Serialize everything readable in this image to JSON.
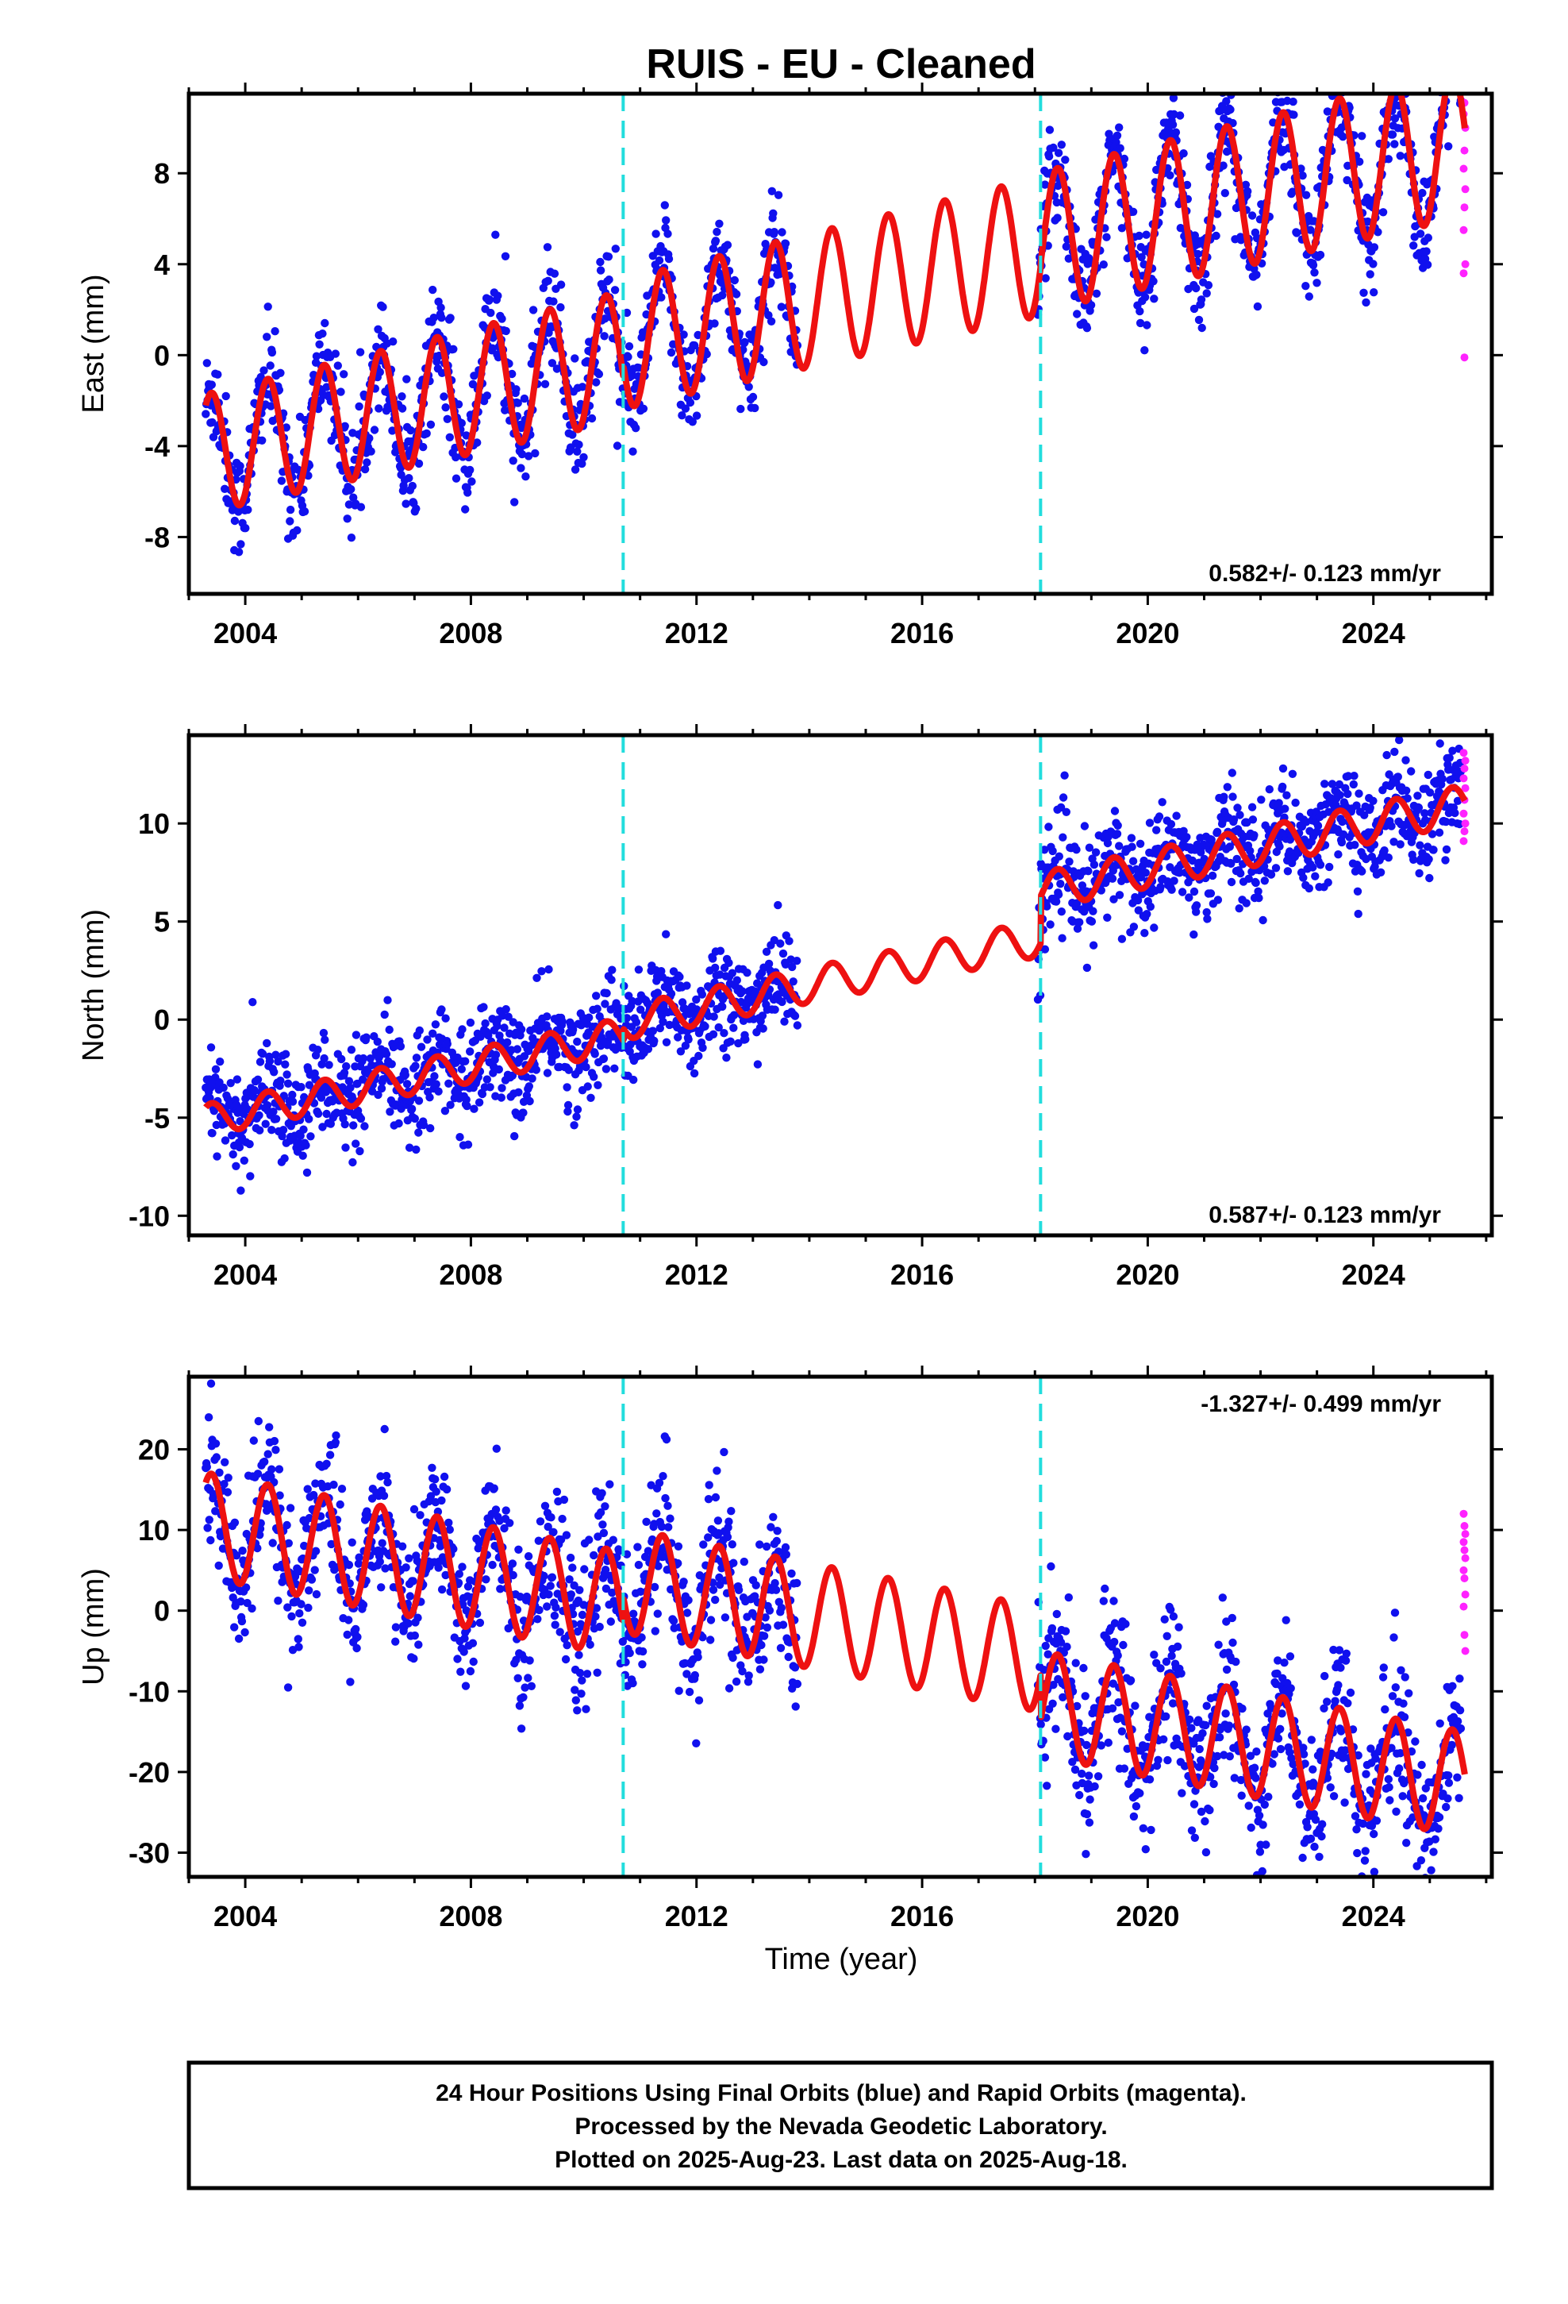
{
  "title": "RUIS  - EU - Cleaned",
  "colors": {
    "final_orbits": "#1010ee",
    "rapid_orbits": "#ff22ff",
    "model_fit": "#ee1111",
    "event_lines": "#22dddd",
    "axes": "#000000"
  },
  "x_axis": {
    "label": "Time (year)",
    "range": [
      2003.0,
      2026.1
    ],
    "ticks": [
      2004,
      2008,
      2012,
      2016,
      2020,
      2024
    ],
    "tick_labels": [
      "2004",
      "2008",
      "2012",
      "2016",
      "2020",
      "2024"
    ]
  },
  "event_lines_years": [
    2010.7,
    2018.1
  ],
  "chart_data": [
    {
      "type": "scatter",
      "component": "east",
      "ylabel": "East (mm)",
      "ylim": [
        -10.5,
        11.5
      ],
      "yticks": [
        -8,
        -4,
        0,
        4,
        8
      ],
      "ytick_labels": [
        "-8",
        "-4",
        "0",
        "4",
        "8"
      ],
      "rate_label": "0.582+/- 0.123 mm/yr",
      "rate_position": "bottom-right",
      "model": {
        "base": -4.5,
        "slope": 0.582,
        "origin_year": 2003.0,
        "seasonal_amp": [
          2.6,
          3.3
        ],
        "jumps": [
          {
            "year": 2010.7,
            "value": 0.5
          },
          {
            "year": 2018.1,
            "value": 0.2
          }
        ]
      },
      "final_orbit_data": {
        "start": 2003.3,
        "end": 2025.55,
        "gaps": [
          [
            2013.8,
            2018.05
          ]
        ],
        "noise": 1.2
      },
      "rapid_orbit_values": [
        5.5,
        6.5,
        7.3,
        8.2,
        9.0,
        10.0,
        10.6,
        11.1,
        4.0,
        3.6,
        -0.1
      ]
    },
    {
      "type": "scatter",
      "component": "north",
      "ylabel": "North (mm)",
      "ylim": [
        -11,
        14.5
      ],
      "yticks": [
        -10,
        -5,
        0,
        5,
        10
      ],
      "ytick_labels": [
        "-10",
        "-5",
        "0",
        "5",
        "10"
      ],
      "rate_label": "0.587+/- 0.123 mm/yr",
      "rate_position": "bottom-right",
      "model": {
        "base": -5.3,
        "slope": 0.587,
        "origin_year": 2003.0,
        "seasonal_amp": [
          0.8,
          1.0
        ],
        "jumps": [
          {
            "year": 2010.7,
            "value": 0.6
          },
          {
            "year": 2018.1,
            "value": 2.4
          }
        ]
      },
      "final_orbit_data": {
        "start": 2003.3,
        "end": 2025.55,
        "gaps": [
          [
            2013.8,
            2018.05
          ]
        ],
        "noise": 1.3
      },
      "rapid_orbit_values": [
        10.5,
        11.2,
        11.8,
        12.3,
        12.8,
        13.2,
        13.6,
        9.6,
        10.0,
        9.1
      ]
    },
    {
      "type": "scatter",
      "component": "up",
      "ylabel": "Up (mm)",
      "ylim": [
        -33,
        29
      ],
      "yticks": [
        -30,
        -20,
        -10,
        0,
        10,
        20
      ],
      "ytick_labels": [
        "-30",
        "-20",
        "-10",
        "0",
        "10",
        "20"
      ],
      "rate_label": "-1.327+/- 0.499 mm/yr",
      "rate_position": "top-right",
      "model": {
        "base": 11.0,
        "slope": -1.327,
        "origin_year": 2003.0,
        "seasonal_amp": [
          6.5,
          6.5
        ],
        "jumps": [
          {
            "year": 2010.7,
            "value": 3.0
          },
          {
            "year": 2018.1,
            "value": -5.5
          }
        ]
      },
      "final_orbit_data": {
        "start": 2003.3,
        "end": 2025.55,
        "gaps": [
          [
            2013.8,
            2018.05
          ]
        ],
        "noise": 4.5
      },
      "rapid_orbit_values": [
        12,
        10.5,
        9.5,
        8.5,
        7.5,
        6.5,
        5.0,
        4.0,
        2.0,
        0.5,
        -3.0,
        -5.0
      ]
    }
  ],
  "footer": {
    "line1": "24 Hour Positions Using Final Orbits (blue) and Rapid Orbits (magenta).",
    "line2": "Processed by the Nevada Geodetic Laboratory.",
    "line3": "Plotted on 2025-Aug-23. Last data on 2025-Aug-18."
  }
}
